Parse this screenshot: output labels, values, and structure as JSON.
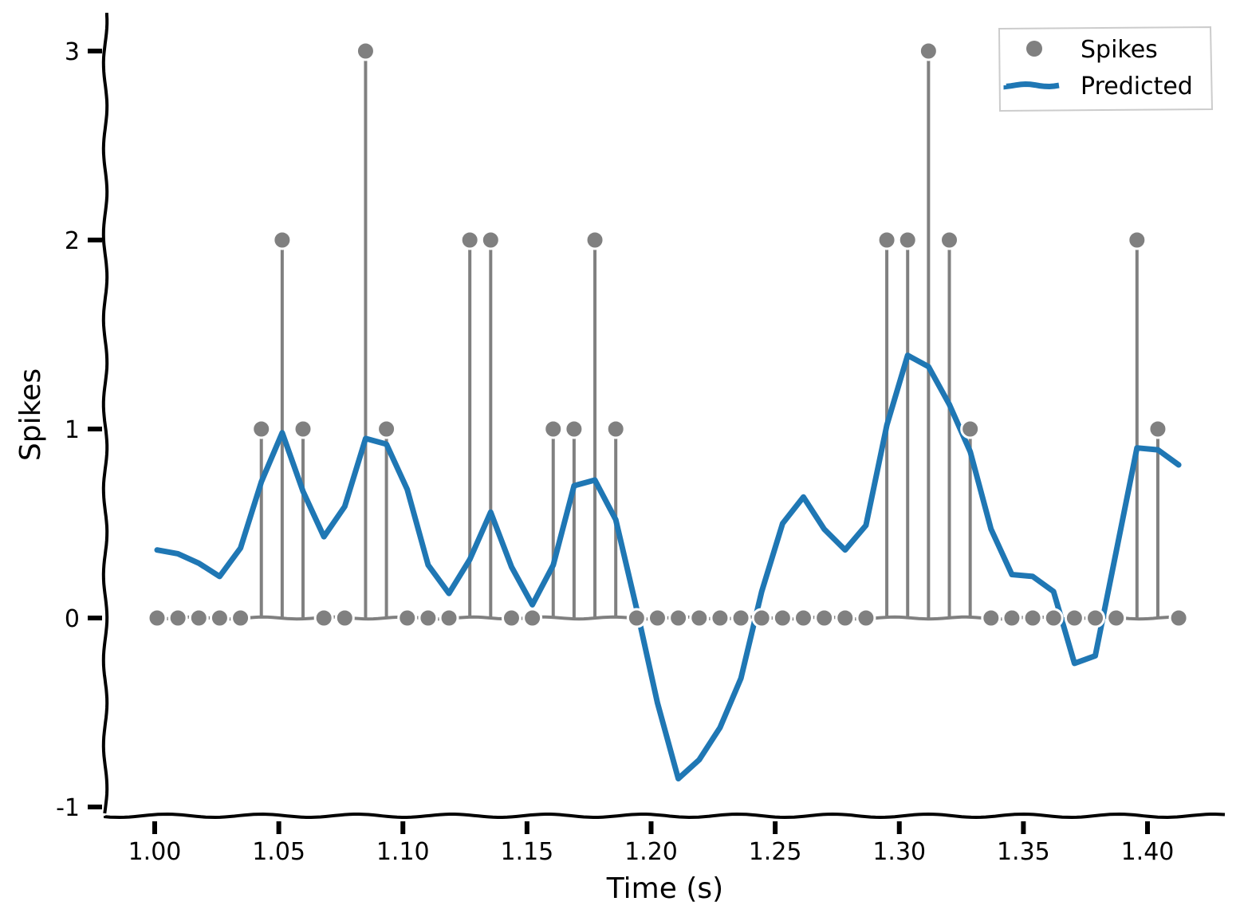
{
  "chart_data": {
    "type": "line",
    "title": "",
    "xlabel": "Time (s)",
    "ylabel": "Spikes",
    "xlim": [
      0.98,
      1.43
    ],
    "ylim": [
      -1.05,
      3.2
    ],
    "xticks": [
      1.0,
      1.05,
      1.1,
      1.15,
      1.2,
      1.25,
      1.3,
      1.35,
      1.4
    ],
    "xtick_labels": [
      "1.00",
      "1.05",
      "1.10",
      "1.15",
      "1.20",
      "1.25",
      "1.30",
      "1.35",
      "1.40"
    ],
    "yticks": [
      -1,
      0,
      1,
      2,
      3
    ],
    "ytick_labels": [
      "-1",
      "0",
      "1",
      "2",
      "3"
    ],
    "grid": false,
    "legend_position": "top-right",
    "style": "xkcd-like hand drawn axes",
    "series": [
      {
        "name": "Spikes",
        "kind": "stem",
        "color": "#808080",
        "x": [
          1.0,
          1.0084,
          1.0168,
          1.0252,
          1.0336,
          1.042,
          1.0504,
          1.0588,
          1.0672,
          1.0756,
          1.084,
          1.0924,
          1.1008,
          1.1092,
          1.1176,
          1.126,
          1.1344,
          1.1428,
          1.1512,
          1.1596,
          1.168,
          1.1764,
          1.1848,
          1.1932,
          1.2016,
          1.21,
          1.2184,
          1.2268,
          1.2352,
          1.2436,
          1.252,
          1.2604,
          1.2688,
          1.2772,
          1.2856,
          1.294,
          1.3024,
          1.3108,
          1.3192,
          1.3276,
          1.336,
          1.3444,
          1.3528,
          1.3612,
          1.3696,
          1.378,
          1.3864,
          1.3948,
          1.4032,
          1.4116
        ],
        "y": [
          0,
          0,
          0,
          0,
          0,
          1,
          2,
          1,
          0,
          0,
          3,
          1,
          0,
          0,
          0,
          2,
          2,
          0,
          0,
          1,
          1,
          2,
          1,
          0,
          0,
          0,
          0,
          0,
          0,
          0,
          0,
          0,
          0,
          0,
          0,
          2,
          2,
          3,
          2,
          1,
          0,
          0,
          0,
          0,
          0,
          0,
          0,
          2,
          1,
          0
        ]
      },
      {
        "name": "Predicted",
        "kind": "line",
        "color": "#1f77b4",
        "x": [
          1.0,
          1.0084,
          1.0168,
          1.0252,
          1.0336,
          1.042,
          1.0504,
          1.0588,
          1.0672,
          1.0756,
          1.084,
          1.0924,
          1.1008,
          1.1092,
          1.1176,
          1.126,
          1.1344,
          1.1428,
          1.1512,
          1.1596,
          1.168,
          1.1764,
          1.1848,
          1.1932,
          1.2016,
          1.21,
          1.2184,
          1.2268,
          1.2352,
          1.2436,
          1.252,
          1.2604,
          1.2688,
          1.2772,
          1.2856,
          1.294,
          1.3024,
          1.3108,
          1.3192,
          1.3276,
          1.336,
          1.3444,
          1.3528,
          1.3612,
          1.3696,
          1.378,
          1.3864,
          1.3948,
          1.4032,
          1.4116
        ],
        "y": [
          0.36,
          0.34,
          0.29,
          0.22,
          0.37,
          0.72,
          0.98,
          0.67,
          0.43,
          0.59,
          0.95,
          0.92,
          0.68,
          0.28,
          0.13,
          0.31,
          0.56,
          0.27,
          0.07,
          0.28,
          0.7,
          0.73,
          0.52,
          0.05,
          -0.45,
          -0.85,
          -0.75,
          -0.58,
          -0.32,
          0.14,
          0.5,
          0.64,
          0.47,
          0.36,
          0.49,
          1.02,
          1.39,
          1.33,
          1.13,
          0.88,
          0.47,
          0.23,
          0.22,
          0.14,
          -0.24,
          -0.2,
          0.35,
          0.9,
          0.89,
          0.81
        ]
      }
    ]
  },
  "legend": {
    "items": [
      {
        "label": "Spikes",
        "color": "#808080",
        "marker": "circle"
      },
      {
        "label": "Predicted",
        "color": "#1f77b4",
        "marker": "line"
      }
    ]
  }
}
